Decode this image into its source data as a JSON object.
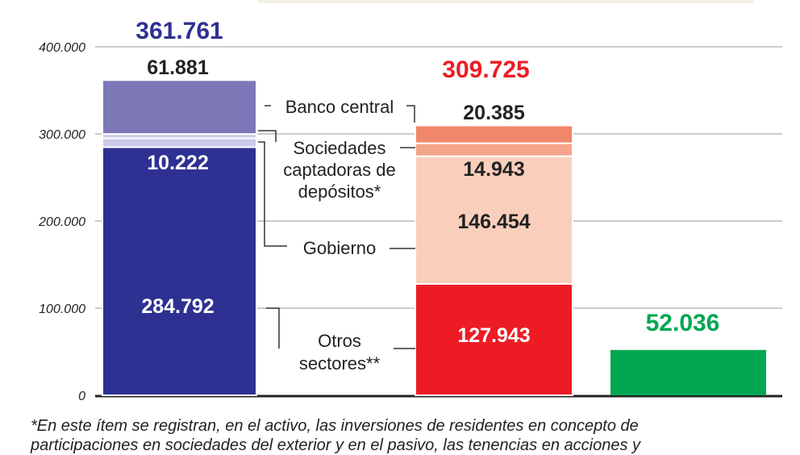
{
  "chart_data": {
    "type": "bar",
    "stacked": true,
    "ylim": [
      0,
      400000
    ],
    "yticks": [
      "0",
      "100.000",
      "200.000",
      "300.000",
      "400.000"
    ],
    "ytick_values": [
      0,
      100000,
      200000,
      300000,
      400000
    ],
    "grid": true,
    "bars": [
      {
        "total": 361761,
        "total_label": "361.761",
        "color": "#2e3192",
        "segments": [
          {
            "series": "Otros sectores**",
            "value": 284792,
            "label": "284.792",
            "color": "#2e3192",
            "label_color": "#ffffff"
          },
          {
            "series": "Gobierno",
            "value": 10222,
            "label": "10.222",
            "color": "#c9cbe8",
            "label_color": "#ffffff"
          },
          {
            "series": "Sociedades captadoras de depósitos*",
            "value": 4866,
            "label": "4.866",
            "color": "#c9cbe8",
            "label_color": "#ffffff"
          },
          {
            "series": "Banco central",
            "value": 61881,
            "label": "61.881",
            "color": "#7d79b9",
            "label_color": "#222222"
          }
        ]
      },
      {
        "total": 309725,
        "total_label": "309.725",
        "color": "#ed1c24",
        "segments": [
          {
            "series": "Otros sectores**",
            "value": 127943,
            "label": "127.943",
            "color": "#ed1c24",
            "label_color": "#ffffff"
          },
          {
            "series": "Gobierno",
            "value": 146454,
            "label": "146.454",
            "color": "#f9cfbb",
            "label_color": "#222222"
          },
          {
            "series": "Sociedades captadoras de depósitos*",
            "value": 14943,
            "label": "14.943",
            "color": "#f4a488",
            "label_color": "#222222"
          },
          {
            "series": "Banco central",
            "value": 20385,
            "label": "20.385",
            "color": "#f0876a",
            "label_color": "#222222"
          }
        ]
      },
      {
        "total": 52036,
        "total_label": "52.036",
        "color": "#00a651",
        "segments": [
          {
            "value": 52036,
            "color": "#00a651"
          }
        ]
      }
    ],
    "series_labels": {
      "banco": "Banco central",
      "sociedades": [
        "Sociedades",
        "captadoras de",
        "depósitos*"
      ],
      "gobierno": "Gobierno",
      "otros": [
        "Otros",
        "sectores**"
      ]
    }
  },
  "footnote": {
    "line1": "*En este ítem se registran, en el activo, las inversiones de residentes en concepto de",
    "line2": "participaciones en sociedades del exterior y en el pasivo, las tenencias en acciones y"
  }
}
